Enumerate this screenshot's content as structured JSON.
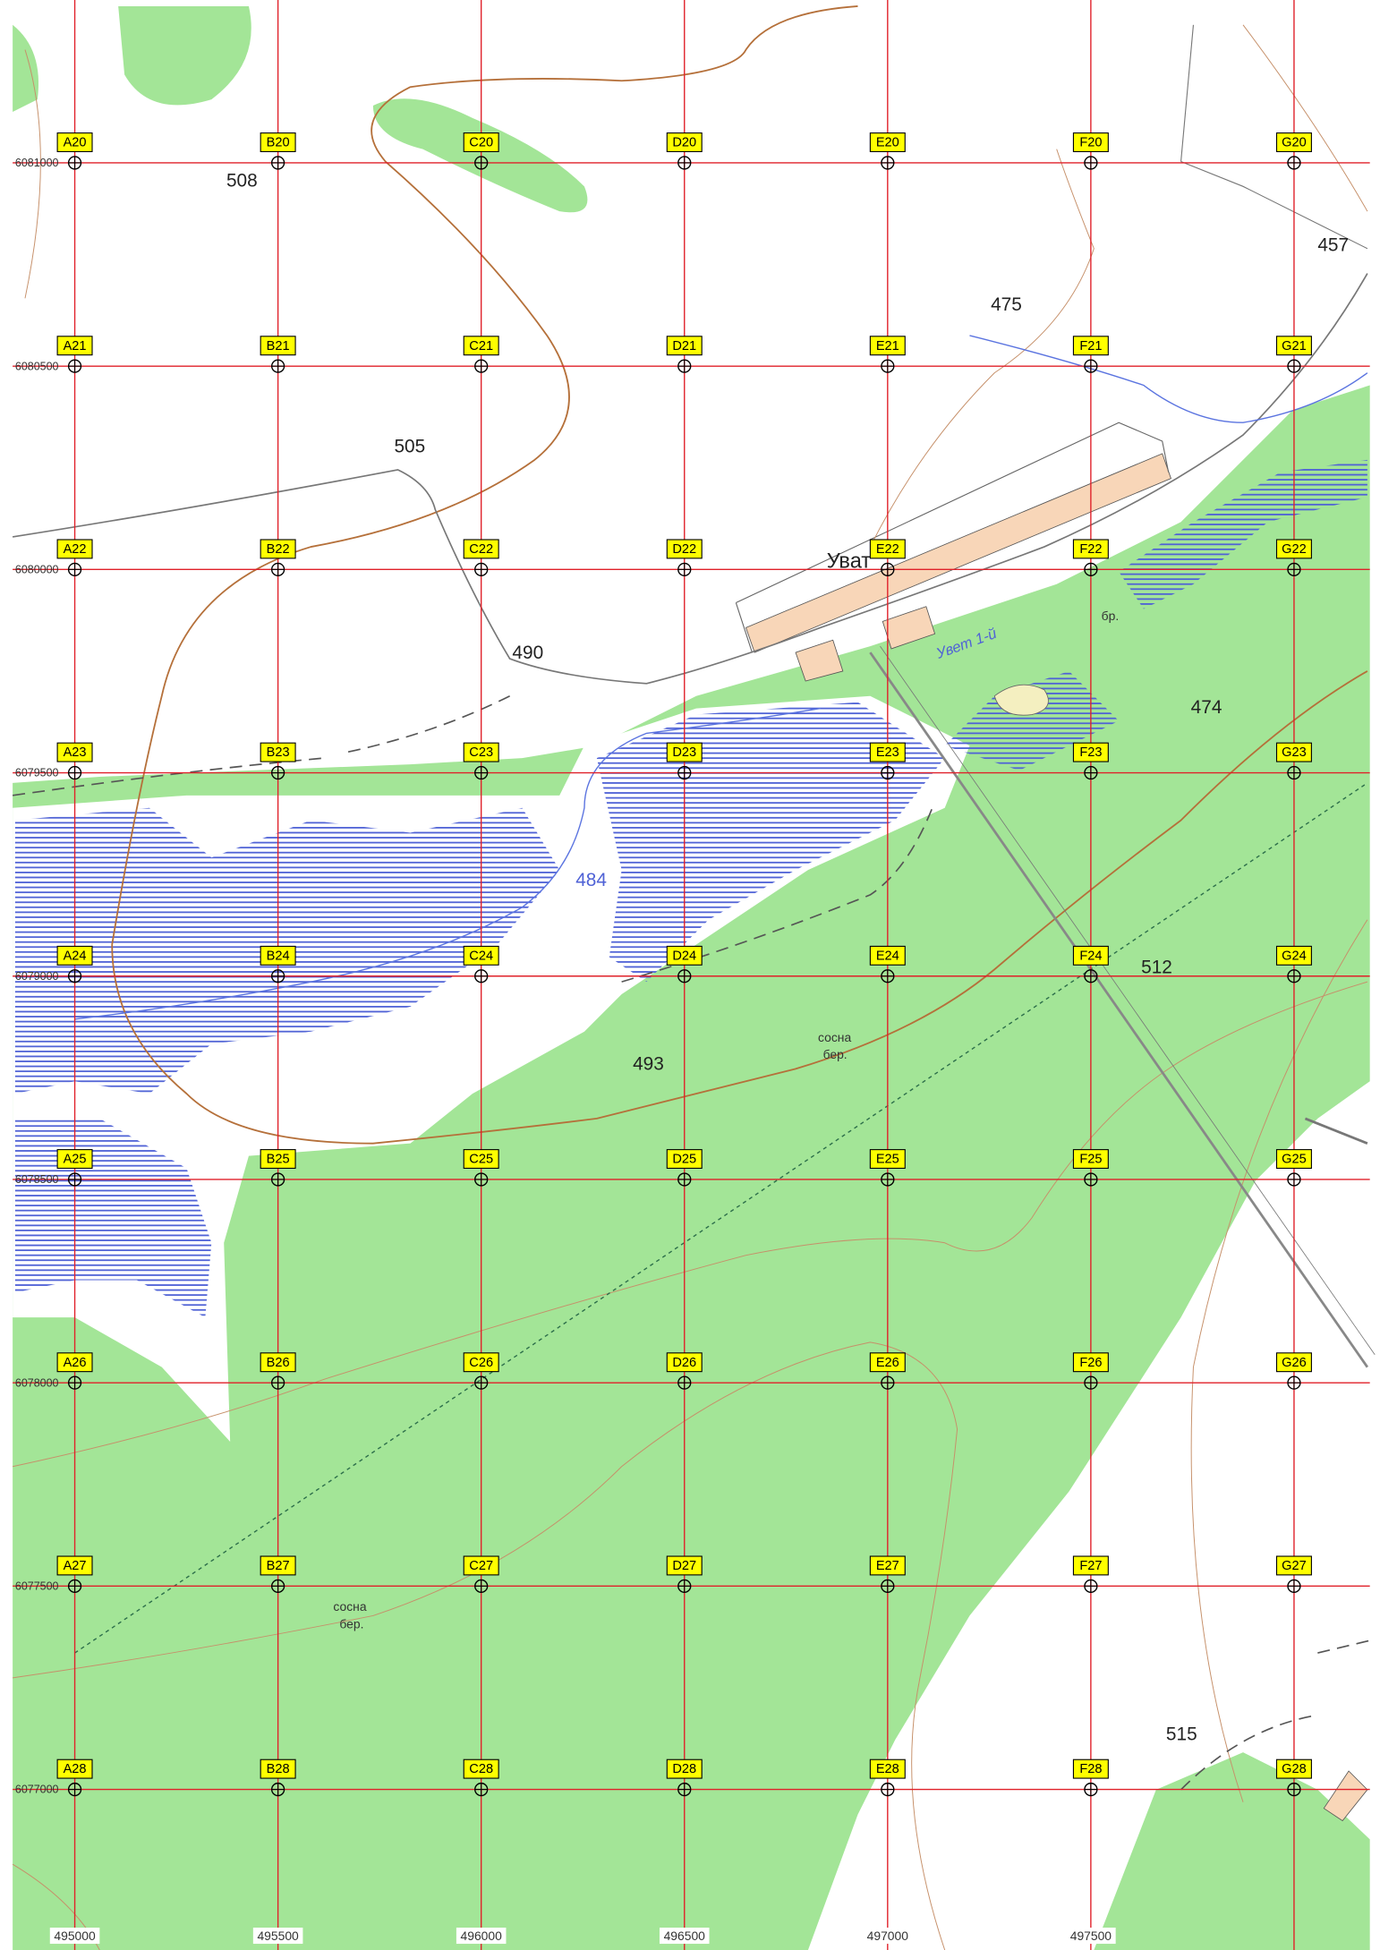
{
  "map": {
    "grid": {
      "cells": [
        [
          "A20",
          "B20",
          "C20",
          "D20",
          "E20",
          "F20",
          "G20"
        ],
        [
          "A21",
          "B21",
          "C21",
          "D21",
          "E21",
          "F21",
          "G21"
        ],
        [
          "A22",
          "B22",
          "C22",
          "D22",
          "E22",
          "F22",
          "G22"
        ],
        [
          "A23",
          "B23",
          "C23",
          "D23",
          "E23",
          "F23",
          "G23"
        ],
        [
          "A24",
          "B24",
          "C24",
          "D24",
          "E24",
          "F24",
          "G24"
        ],
        [
          "A25",
          "B25",
          "C25",
          "D25",
          "E25",
          "F25",
          "G25"
        ],
        [
          "A26",
          "B26",
          "C26",
          "D26",
          "E26",
          "F26",
          "G26"
        ],
        [
          "A27",
          "B27",
          "C27",
          "D27",
          "E27",
          "F27",
          "G27"
        ],
        [
          "A28",
          "B28",
          "C28",
          "D28",
          "E28",
          "F28",
          "G28"
        ]
      ]
    },
    "northings": [
      "6081000",
      "6080500",
      "6080000",
      "6079500",
      "6079000",
      "6078500",
      "6078000",
      "6077500",
      "6077000"
    ],
    "eastings": [
      "495000",
      "495500",
      "496000",
      "496500",
      "497000",
      "497500"
    ],
    "elevations": [
      "508",
      "475",
      "457",
      "505",
      "490",
      "474",
      "484",
      "493",
      "512",
      "515"
    ],
    "places": {
      "settlement": "Уват",
      "stream": "Увет 1-й",
      "ford": "бр.",
      "forest_a_1": "сосна",
      "forest_a_2": "бер.",
      "forest_b_1": "сосна",
      "forest_b_2": "бер."
    }
  }
}
